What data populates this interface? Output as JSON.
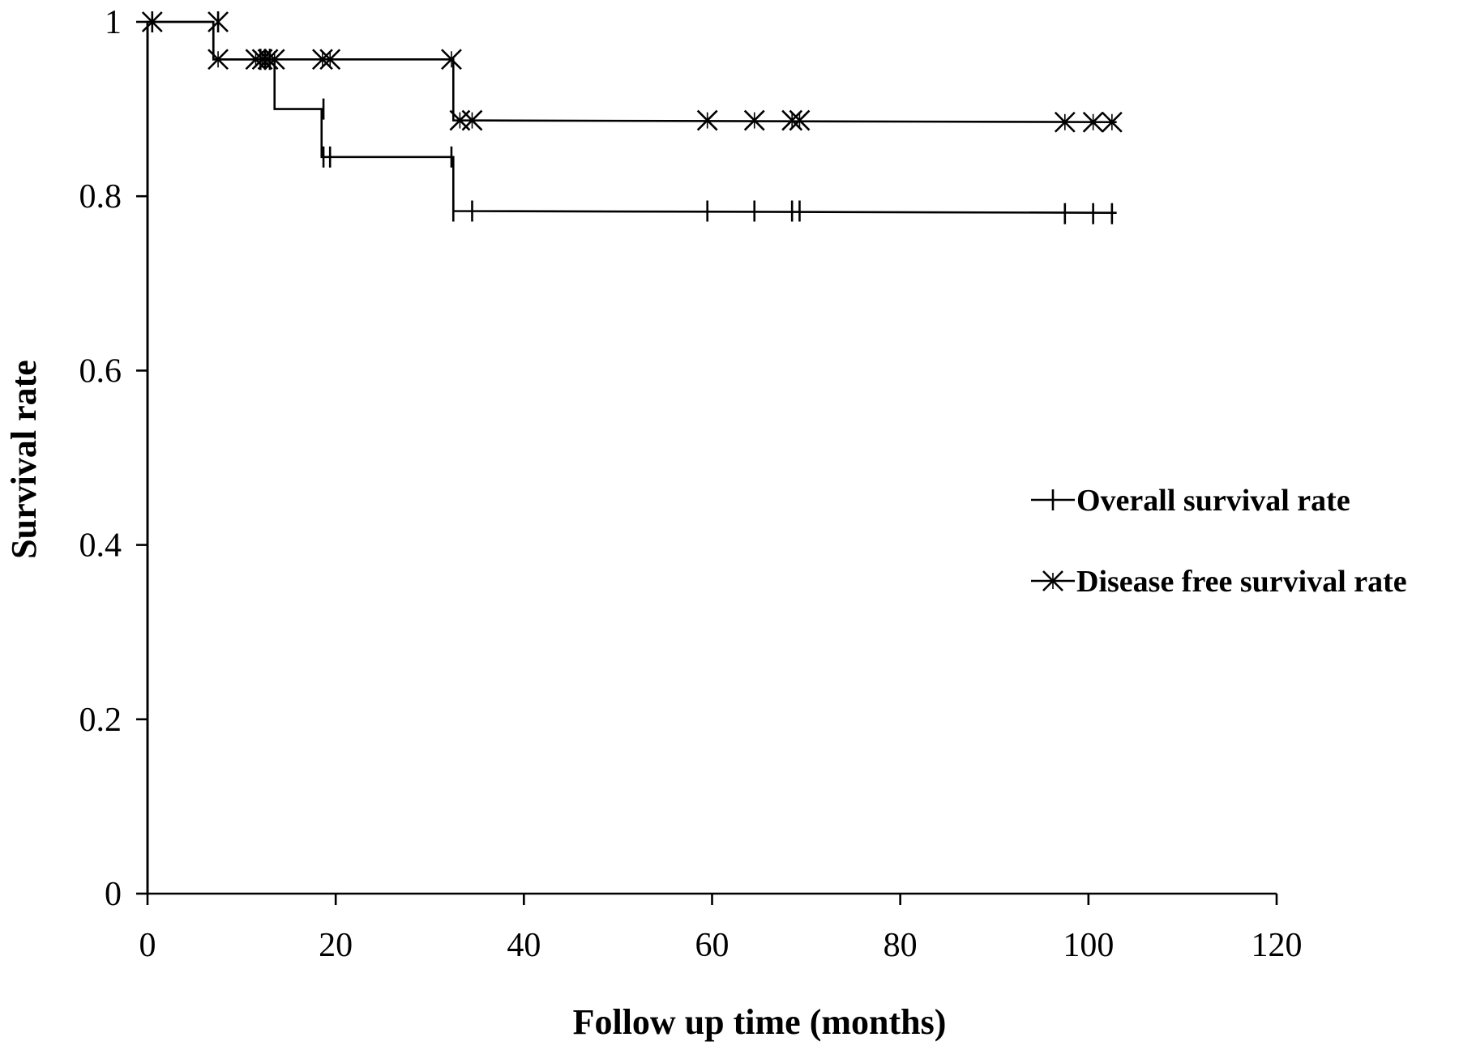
{
  "chart_data": {
    "type": "line",
    "subtype": "kaplan-meier step",
    "xlabel": "Follow up time (months)",
    "ylabel": "Survival rate",
    "xlim": [
      0,
      120
    ],
    "ylim": [
      0,
      1
    ],
    "xticks": [
      "0",
      "20",
      "40",
      "60",
      "80",
      "100",
      "120"
    ],
    "yticks": [
      "0",
      "0.2",
      "0.4",
      "0.6",
      "0.8",
      "1"
    ],
    "grid": false,
    "legend_position": "right",
    "series": [
      {
        "name": "Overall survival rate",
        "marker": "plus",
        "steps": [
          {
            "x": 0,
            "y": 1.0
          },
          {
            "x": 7,
            "y": 0.957
          },
          {
            "x": 13.5,
            "y": 0.9
          },
          {
            "x": 18.5,
            "y": 0.845
          },
          {
            "x": 32.5,
            "y": 0.783
          }
        ],
        "end_x": 103,
        "censored": [
          {
            "x": 0.5,
            "y": 1.0
          },
          {
            "x": 7.5,
            "y": 1.0
          },
          {
            "x": 12,
            "y": 0.957
          },
          {
            "x": 12.5,
            "y": 0.957
          },
          {
            "x": 13,
            "y": 0.957
          },
          {
            "x": 18.7,
            "y": 0.9
          },
          {
            "x": 18.7,
            "y": 0.845
          },
          {
            "x": 19.4,
            "y": 0.845
          },
          {
            "x": 32.3,
            "y": 0.845
          },
          {
            "x": 32.5,
            "y": 0.783
          },
          {
            "x": 34.5,
            "y": 0.783
          },
          {
            "x": 59.5,
            "y": 0.783
          },
          {
            "x": 64.5,
            "y": 0.783
          },
          {
            "x": 68.5,
            "y": 0.783
          },
          {
            "x": 69.3,
            "y": 0.783
          },
          {
            "x": 97.5,
            "y": 0.78
          },
          {
            "x": 100.5,
            "y": 0.78
          },
          {
            "x": 102.5,
            "y": 0.78
          }
        ]
      },
      {
        "name": "Disease free survival rate",
        "marker": "cross",
        "steps": [
          {
            "x": 0,
            "y": 1.0
          },
          {
            "x": 7,
            "y": 0.957
          },
          {
            "x": 32.5,
            "y": 0.887
          }
        ],
        "end_x": 103,
        "censored": [
          {
            "x": 0.5,
            "y": 1.0
          },
          {
            "x": 7.5,
            "y": 1.0
          },
          {
            "x": 7.5,
            "y": 0.957
          },
          {
            "x": 11.5,
            "y": 0.957
          },
          {
            "x": 12.2,
            "y": 0.957
          },
          {
            "x": 12.8,
            "y": 0.957
          },
          {
            "x": 13.5,
            "y": 0.957
          },
          {
            "x": 18.6,
            "y": 0.957
          },
          {
            "x": 19.4,
            "y": 0.957
          },
          {
            "x": 32.3,
            "y": 0.957
          },
          {
            "x": 33.2,
            "y": 0.887
          },
          {
            "x": 34.5,
            "y": 0.887
          },
          {
            "x": 59.5,
            "y": 0.887
          },
          {
            "x": 64.5,
            "y": 0.887
          },
          {
            "x": 68.5,
            "y": 0.887
          },
          {
            "x": 69.3,
            "y": 0.887
          },
          {
            "x": 97.5,
            "y": 0.885
          },
          {
            "x": 100.5,
            "y": 0.885
          },
          {
            "x": 102.5,
            "y": 0.885
          }
        ]
      }
    ]
  }
}
